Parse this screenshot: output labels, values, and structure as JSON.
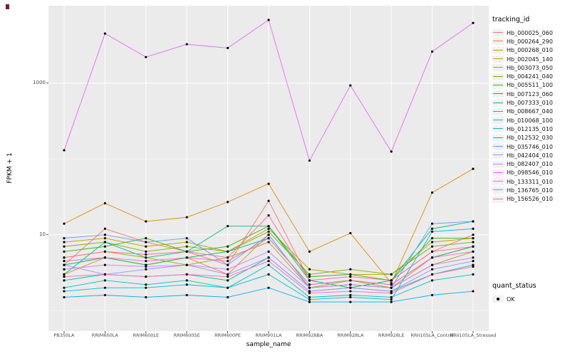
{
  "chart_data": {
    "type": "line",
    "title": "",
    "xlabel": "sample_name",
    "ylabel": "FPKM + 1",
    "y_scale": "log10",
    "y_log_range": [
      -0.27,
      4.02
    ],
    "grid": true,
    "panel_bg": "#EBEBEB",
    "grid_color": "#FFFFFF",
    "legend_position": "right",
    "legend_title": "tracking_id",
    "y_ticks": [
      {
        "value": 10,
        "label": "10"
      },
      {
        "value": 1000,
        "label": "1000"
      }
    ],
    "y_minor_gridlines": [
      1,
      100
    ],
    "x_categories": [
      "PB350LA",
      "RRIM600LA",
      "RRIM600LE",
      "RRIM600SE",
      "RRIM600PE",
      "RRIM901LA",
      "RRIM928BA",
      "RRIM928LA",
      "RRIM928LE",
      "RRII105LA_Control",
      "RRII105LA_Stressed"
    ],
    "series": [
      {
        "name": "Hb_000025_060",
        "color": "#F8766D",
        "values": [
          4,
          12,
          8,
          6,
          4,
          28,
          2.5,
          2,
          2.5,
          6,
          10
        ]
      },
      {
        "name": "Hb_000264_290",
        "color": "#EA8331",
        "values": [
          3,
          5,
          4,
          5,
          3,
          10,
          2,
          2.2,
          2,
          5,
          7
        ]
      },
      {
        "name": "Hb_000268_010",
        "color": "#D89000",
        "values": [
          14,
          26,
          15,
          17,
          27,
          47,
          6,
          10.5,
          2.3,
          36,
          74
        ]
      },
      {
        "name": "Hb_002045_140",
        "color": "#C09B00",
        "values": [
          8,
          9,
          7,
          8,
          6,
          12,
          3.5,
          3,
          3,
          8,
          9
        ]
      },
      {
        "name": "Hb_003073_050",
        "color": "#A3A500",
        "values": [
          5,
          6,
          5,
          4,
          5,
          8,
          2,
          2.5,
          2,
          4,
          6
        ]
      },
      {
        "name": "Hb_004241_040",
        "color": "#7CAE00",
        "values": [
          7,
          8,
          6,
          7,
          6,
          11,
          3,
          3.5,
          3,
          7,
          8
        ]
      },
      {
        "name": "Hb_005511_100",
        "color": "#39B600",
        "values": [
          6,
          7,
          9,
          6,
          7,
          13,
          2.8,
          3,
          2.5,
          9,
          9
        ]
      },
      {
        "name": "Hb_007123_060",
        "color": "#00BB4E",
        "values": [
          4,
          5,
          4,
          5,
          6,
          9,
          2.2,
          2.5,
          2.2,
          5,
          7
        ]
      },
      {
        "name": "Hb_007333_010",
        "color": "#00BF7D",
        "values": [
          3,
          8,
          5,
          6,
          13,
          13,
          2.5,
          2,
          2.5,
          12,
          15
        ]
      },
      {
        "name": "Hb_008667_040",
        "color": "#00C1A3",
        "values": [
          2.5,
          3,
          2.8,
          3,
          2.5,
          5,
          1.8,
          2,
          1.8,
          3,
          4
        ]
      },
      {
        "name": "Hb_010068_100",
        "color": "#00BFC4",
        "values": [
          2,
          2.5,
          2.2,
          2.5,
          2,
          4,
          1.5,
          1.6,
          1.5,
          2.5,
          3
        ]
      },
      {
        "name": "Hb_012135_010",
        "color": "#00BAE0",
        "values": [
          1.8,
          2,
          2,
          2.2,
          2,
          3,
          1.4,
          1.5,
          1.4,
          11,
          12
        ]
      },
      {
        "name": "Hb_012532_030",
        "color": "#00ACFC",
        "values": [
          1.5,
          1.6,
          1.5,
          1.6,
          1.5,
          2,
          1.3,
          1.3,
          1.3,
          1.6,
          1.8
        ]
      },
      {
        "name": "Hb_035746_010",
        "color": "#619CFF",
        "values": [
          9,
          10,
          8,
          9,
          4,
          10,
          2,
          2.2,
          2,
          14,
          15
        ]
      },
      {
        "name": "Hb_042404_010",
        "color": "#9C8DFF",
        "values": [
          4,
          3,
          3.5,
          4,
          3,
          5,
          1.8,
          2,
          1.8,
          3.5,
          4.5
        ]
      },
      {
        "name": "Hb_082407_010",
        "color": "#C77CFF",
        "values": [
          3.5,
          4,
          3.8,
          4,
          3.5,
          6,
          2,
          2.2,
          2,
          4,
          5
        ]
      },
      {
        "name": "Hb_098546_010",
        "color": "#E76BF3",
        "values": [
          130,
          4500,
          2200,
          3250,
          2900,
          6800,
          95,
          930,
          125,
          2600,
          6200
        ]
      },
      {
        "name": "Hb_133311_010",
        "color": "#FB61D7",
        "values": [
          4.5,
          5,
          4.5,
          5,
          4.5,
          9,
          2.2,
          2.5,
          2.2,
          5,
          6
        ]
      },
      {
        "name": "Hb_136765_010",
        "color": "#FF61C0",
        "values": [
          2.8,
          3,
          2.8,
          3,
          2.8,
          4.5,
          1.7,
          1.8,
          1.7,
          3,
          3.8
        ]
      },
      {
        "name": "Hb_156526_010",
        "color": "#FF689E",
        "values": [
          5,
          6,
          5.5,
          6,
          5,
          18,
          2.5,
          2.8,
          2.5,
          6,
          7
        ]
      }
    ],
    "quant_legend": {
      "title": "quant_status",
      "items": [
        {
          "label": "OK",
          "symbol": "point",
          "color": "#000000"
        }
      ]
    }
  }
}
